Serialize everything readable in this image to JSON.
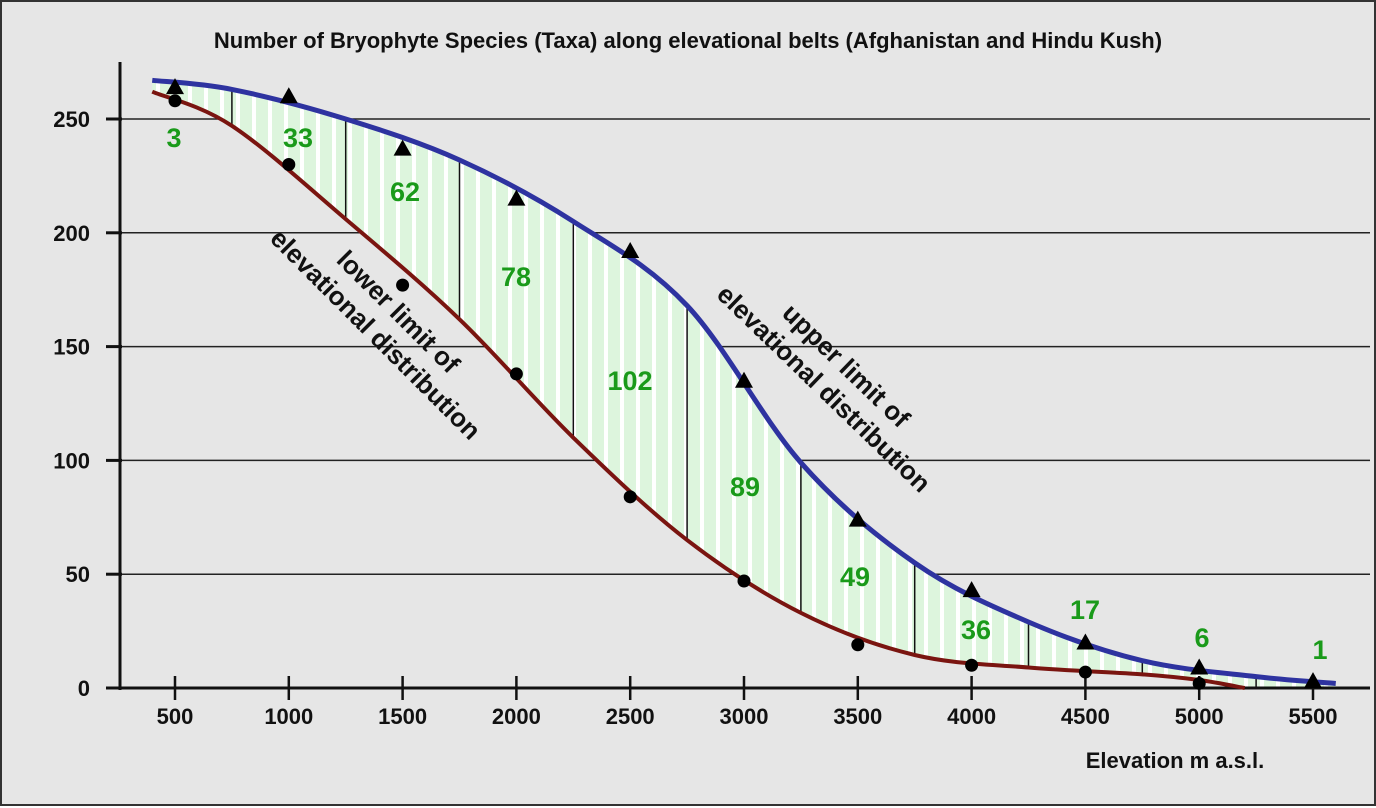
{
  "chart_data": {
    "type": "line",
    "title": "Number of Bryophyte Species (Taxa) along elevational belts (Afghanistan and Hindu Kush)",
    "xlabel": "Elevation  m a.s.l.",
    "ylabel": "",
    "xlim": [
      400,
      5600
    ],
    "ylim": [
      0,
      250
    ],
    "x_ticks": [
      500,
      1000,
      1500,
      2000,
      2500,
      3000,
      3500,
      4000,
      4500,
      5000,
      5500
    ],
    "y_ticks": [
      0,
      50,
      100,
      150,
      200,
      250
    ],
    "grid": "horizontal",
    "series": [
      {
        "name": "upper limit of elevational distribution",
        "marker": "triangle",
        "color": "#2e33a0",
        "x": [
          500,
          1000,
          1500,
          2000,
          2500,
          3000,
          3500,
          4000,
          4500,
          5000,
          5500
        ],
        "values": [
          264,
          260,
          237,
          215,
          192,
          135,
          74,
          43,
          20,
          9,
          3
        ],
        "curve_x": [
          400,
          750,
          1250,
          1750,
          2250,
          2750,
          3250,
          3750,
          4250,
          4750,
          5250,
          5600
        ],
        "curve_y": [
          267,
          263,
          250,
          232,
          205,
          168,
          99,
          55,
          29,
          12,
          5,
          2
        ]
      },
      {
        "name": "lower limit of elevational distribution",
        "marker": "circle",
        "color": "#7a1510",
        "x": [
          500,
          1000,
          1500,
          2000,
          2500,
          3000,
          3500,
          4000,
          4500,
          5000
        ],
        "values": [
          258,
          230,
          177,
          138,
          84,
          47,
          19,
          10,
          7,
          2
        ],
        "curve_x": [
          400,
          750,
          1250,
          1750,
          2250,
          2750,
          3250,
          3750,
          4250,
          4750,
          5000,
          5200
        ],
        "curve_y": [
          262,
          247,
          206,
          162,
          110,
          65,
          33,
          14.5,
          9,
          6,
          3.5,
          0
        ]
      }
    ],
    "belt_boundaries": [
      750,
      1250,
      1750,
      2250,
      2750,
      3250,
      3750,
      4250,
      4750,
      5250
    ],
    "belt_species_counts": {
      "x": [
        500,
        1000,
        1500,
        2000,
        2500,
        3000,
        3500,
        4000,
        4500,
        5000,
        5500
      ],
      "labels": [
        "3",
        "33",
        "62",
        "78",
        "102",
        "89",
        "49",
        "36",
        "17",
        "6",
        "1"
      ],
      "color": "#1a9a1a"
    },
    "annotations": {
      "lower_line1": "lower limit of",
      "lower_line2": "elevational distribution",
      "upper_line1": "upper limit of",
      "upper_line2": "elevational distribution"
    },
    "fill_color": "#ddf5dd"
  }
}
